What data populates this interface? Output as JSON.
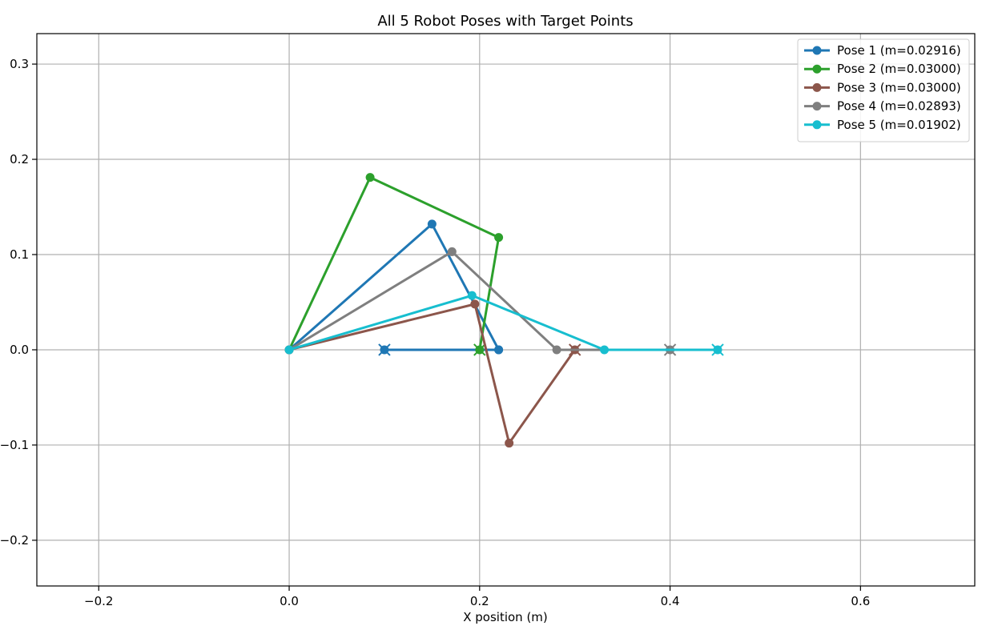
{
  "chart_data": {
    "type": "line",
    "title": "All 5 Robot Poses with Target Points",
    "xlabel": "X position (m)",
    "ylabel": "",
    "xlim": [
      -0.265,
      0.72
    ],
    "ylim": [
      -0.248,
      0.332
    ],
    "xticks": [
      -0.2,
      0.0,
      0.2,
      0.4,
      0.6
    ],
    "xtick_labels": [
      "−0.2",
      "0.0",
      "0.2",
      "0.4",
      "0.6"
    ],
    "yticks": [
      -0.2,
      -0.1,
      0.0,
      0.1,
      0.2,
      0.3
    ],
    "ytick_labels": [
      "−0.2",
      "−0.1",
      "0.0",
      "0.1",
      "0.2",
      "0.3"
    ],
    "grid": true,
    "legend_position": "top-right",
    "series": [
      {
        "name": "Pose 1 (m=0.02916)",
        "color": "#1f77b4",
        "x": [
          0.0,
          0.15,
          0.22,
          0.1,
          0.22
        ],
        "y": [
          0.0,
          0.132,
          0.0,
          0.0,
          0.0
        ],
        "target": [
          0.1,
          0.0
        ]
      },
      {
        "name": "Pose 2 (m=0.03000)",
        "color": "#2ca02c",
        "x": [
          0.0,
          0.085,
          0.22,
          0.2
        ],
        "y": [
          0.0,
          0.181,
          0.118,
          0.0
        ],
        "target": [
          0.2,
          0.0
        ]
      },
      {
        "name": "Pose 3 (m=0.03000)",
        "color": "#8c564b",
        "x": [
          0.0,
          0.195,
          0.231,
          0.3
        ],
        "y": [
          0.0,
          0.048,
          -0.098,
          0.0
        ],
        "target": [
          0.3,
          0.0
        ]
      },
      {
        "name": "Pose 4 (m=0.02893)",
        "color": "#7f7f7f",
        "x": [
          0.0,
          0.171,
          0.281,
          0.4
        ],
        "y": [
          0.0,
          0.103,
          0.0,
          0.0
        ],
        "target": [
          0.4,
          0.0
        ]
      },
      {
        "name": "Pose 5 (m=0.01902)",
        "color": "#17becf",
        "x": [
          0.0,
          0.192,
          0.331,
          0.45
        ],
        "y": [
          0.0,
          0.057,
          0.0,
          0.0
        ],
        "target": [
          0.45,
          0.0
        ]
      }
    ]
  }
}
